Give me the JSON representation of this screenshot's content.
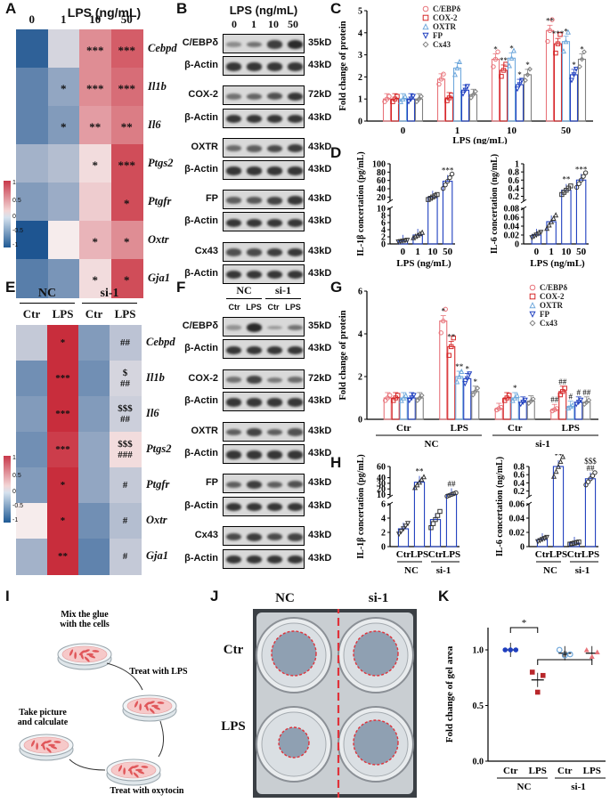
{
  "panels": {
    "A": {
      "label": "A",
      "title": "LPS (ng/mL)",
      "columns": [
        "0",
        "1",
        "10",
        "50"
      ],
      "genes": [
        "Cebpd",
        "Il1b",
        "Il6",
        "Ptgs2",
        "Ptgfr",
        "Oxtr",
        "Gja1"
      ],
      "values": [
        [
          -1.2,
          -0.2,
          0.6,
          0.9
        ],
        [
          -0.9,
          -0.6,
          0.6,
          0.8
        ],
        [
          -0.9,
          -0.7,
          0.5,
          0.7
        ],
        [
          -0.5,
          -0.4,
          0.1,
          1.0
        ],
        [
          -0.7,
          -0.55,
          0.2,
          1.0
        ],
        [
          -1.3,
          0.0,
          0.35,
          0.6
        ],
        [
          -0.95,
          -0.75,
          0.1,
          1.0
        ]
      ],
      "stars": [
        [
          "",
          "",
          "***",
          "***"
        ],
        [
          "",
          "*",
          "***",
          "***"
        ],
        [
          "",
          "*",
          "**",
          "**"
        ],
        [
          "",
          "",
          "*",
          "***"
        ],
        [
          "",
          "",
          "",
          "*"
        ],
        [
          "",
          "",
          "*",
          "*"
        ],
        [
          "",
          "",
          "*",
          "*"
        ]
      ],
      "colorbar": [
        "1",
        "0.5",
        "0",
        "-0.5",
        "-1"
      ]
    },
    "B": {
      "label": "B",
      "title": "LPS (ng/mL)",
      "lanes": [
        "0",
        "1",
        "10",
        "50"
      ],
      "blots": [
        {
          "name": "C/EBPδ",
          "kd": "35kD",
          "bands": [
            0.25,
            0.45,
            0.85,
            1.0
          ]
        },
        {
          "name": "β-Actin",
          "kd": "43kD",
          "bands": [
            0.9,
            0.9,
            0.9,
            0.9
          ]
        },
        {
          "name": "COX-2",
          "kd": "72kD",
          "bands": [
            0.45,
            0.55,
            0.7,
            0.9
          ]
        },
        {
          "name": "β-Actin",
          "kd": "43kD",
          "bands": [
            0.9,
            0.9,
            0.9,
            0.9
          ]
        },
        {
          "name": "OXTR",
          "kd": "43kD",
          "bands": [
            0.5,
            0.6,
            0.75,
            0.85
          ]
        },
        {
          "name": "β-Actin",
          "kd": "43kD",
          "bands": [
            0.9,
            0.9,
            0.9,
            0.9
          ]
        },
        {
          "name": "FP",
          "kd": "43kD",
          "bands": [
            0.6,
            0.65,
            0.8,
            0.9
          ]
        },
        {
          "name": "β-Actin",
          "kd": "43kD",
          "bands": [
            0.9,
            0.9,
            0.9,
            0.9
          ]
        },
        {
          "name": "Cx43",
          "kd": "43kD",
          "bands": [
            0.7,
            0.75,
            0.85,
            0.9
          ]
        },
        {
          "name": "β-Actin",
          "kd": "43kD",
          "bands": [
            0.9,
            0.9,
            0.9,
            0.9
          ]
        }
      ]
    },
    "E": {
      "label": "E",
      "groups": [
        "NC",
        "si-1"
      ],
      "columns": [
        "Ctr",
        "LPS",
        "Ctr",
        "LPS"
      ],
      "genes": [
        "Cebpd",
        "Il1b",
        "Il6",
        "Ptgs2",
        "Ptgfr",
        "Oxtr",
        "Gja1"
      ],
      "values": [
        [
          -0.3,
          1.2,
          -0.7,
          -0.35
        ],
        [
          -0.8,
          1.2,
          -0.8,
          -0.2
        ],
        [
          -0.7,
          1.2,
          -0.7,
          -0.25
        ],
        [
          -0.8,
          1.1,
          -0.6,
          0.1
        ],
        [
          -0.7,
          1.2,
          -0.6,
          -0.3
        ],
        [
          0.0,
          1.2,
          -0.8,
          -0.4
        ],
        [
          -0.5,
          1.2,
          -0.9,
          -0.3
        ]
      ],
      "marks": [
        [
          "",
          "*",
          "",
          "##"
        ],
        [
          "",
          "***",
          "",
          "$\n##"
        ],
        [
          "",
          "***",
          "",
          "$$$\n##"
        ],
        [
          "",
          "***",
          "",
          "$$$\n###"
        ],
        [
          "",
          "*",
          "",
          "#"
        ],
        [
          "",
          "*",
          "",
          "#"
        ],
        [
          "",
          "**",
          "",
          "#"
        ]
      ],
      "colorbar": [
        "1",
        "0.5",
        "0",
        "-0.5",
        "-1"
      ]
    },
    "F": {
      "label": "F",
      "groups": [
        "NC",
        "si-1"
      ],
      "lanes": [
        "Ctr",
        "LPS",
        "Ctr",
        "LPS"
      ],
      "blots": [
        {
          "name": "C/EBPδ",
          "kd": "35kD",
          "bands": [
            0.2,
            1.0,
            0.15,
            0.45
          ]
        },
        {
          "name": "β-Actin",
          "kd": "43kD",
          "bands": [
            0.9,
            0.9,
            0.9,
            0.9
          ]
        },
        {
          "name": "COX-2",
          "kd": "72kD",
          "bands": [
            0.45,
            0.8,
            0.4,
            0.5
          ]
        },
        {
          "name": "β-Actin",
          "kd": "43kD",
          "bands": [
            0.9,
            0.9,
            0.9,
            0.9
          ]
        },
        {
          "name": "OXTR",
          "kd": "43kD",
          "bands": [
            0.6,
            0.8,
            0.6,
            0.7
          ]
        },
        {
          "name": "β-Actin",
          "kd": "43kD",
          "bands": [
            0.9,
            0.9,
            0.9,
            0.9
          ]
        },
        {
          "name": "FP",
          "kd": "43kD",
          "bands": [
            0.6,
            0.85,
            0.6,
            0.7
          ]
        },
        {
          "name": "β-Actin",
          "kd": "43kD",
          "bands": [
            0.9,
            0.9,
            0.9,
            0.9
          ]
        },
        {
          "name": "Cx43",
          "kd": "43kD",
          "bands": [
            0.75,
            0.85,
            0.75,
            0.8
          ]
        },
        {
          "name": "β-Actin",
          "kd": "43kD",
          "bands": [
            0.9,
            0.9,
            0.9,
            0.9
          ]
        }
      ]
    },
    "I": {
      "label": "I",
      "steps": [
        {
          "text": [
            "Mix the glue",
            "with the cells"
          ]
        },
        {
          "text": [
            "Treat with LPS"
          ]
        },
        {
          "text": [
            "Treat with oxytocin"
          ]
        },
        {
          "text": [
            "Take picture",
            "and calculate"
          ]
        }
      ]
    },
    "J": {
      "label": "J",
      "col_labels": [
        "NC",
        "si-1"
      ],
      "row_labels": [
        "Ctr",
        "LPS"
      ]
    }
  },
  "chart_data": [
    {
      "panel": "C",
      "type": "bar",
      "ylabel": "Fold change of protein",
      "xlabel": "LPS (ng/mL)",
      "categories": [
        "0",
        "1",
        "10",
        "50"
      ],
      "ylim": [
        0,
        5
      ],
      "yticks": [
        0,
        1,
        2,
        3,
        4,
        5
      ],
      "series": [
        {
          "name": "C/EBPδ",
          "color": "#e8737a",
          "values": [
            1.0,
            1.9,
            2.8,
            4.1
          ],
          "marks": [
            "",
            "",
            "*",
            "**"
          ]
        },
        {
          "name": "COX-2",
          "color": "#d62728",
          "values": [
            1.0,
            1.05,
            2.3,
            3.5
          ],
          "marks": [
            "",
            "",
            "**",
            "***"
          ]
        },
        {
          "name": "OXTR",
          "color": "#6fa8dc",
          "values": [
            1.0,
            2.4,
            2.85,
            3.6
          ],
          "marks": [
            "",
            "",
            "*",
            "*"
          ]
        },
        {
          "name": "FP",
          "color": "#1f3fbf",
          "values": [
            1.0,
            1.4,
            1.65,
            2.1
          ],
          "marks": [
            "",
            "",
            "*",
            "*"
          ]
        },
        {
          "name": "Cx43",
          "color": "#808080",
          "values": [
            1.0,
            1.2,
            2.1,
            2.8
          ],
          "marks": [
            "",
            "",
            "*",
            "*"
          ]
        }
      ]
    },
    {
      "panel": "D1",
      "type": "bar",
      "ylabel": "IL-1β concertation (pg/mL)",
      "xlabel": "LPS (ng/mL)",
      "categories": [
        "0",
        "1",
        "10",
        "50"
      ],
      "yticks_low": [
        0,
        2,
        4,
        6,
        8,
        10
      ],
      "yticks_high": [
        20,
        40,
        60,
        80,
        100
      ],
      "values": [
        0.8,
        2.5,
        20,
        58
      ],
      "marks": [
        "",
        "",
        "",
        "***"
      ]
    },
    {
      "panel": "D2",
      "type": "bar",
      "ylabel": "IL-6 concertation (ng/mL)",
      "xlabel": "LPS (ng/mL)",
      "categories": [
        "0",
        "1",
        "10",
        "50"
      ],
      "yticks_low": [
        0,
        0.02,
        0.04,
        0.06,
        0.08
      ],
      "yticks_high": [
        0.2,
        0.4,
        0.6,
        0.8,
        1.0
      ],
      "values": [
        0.02,
        0.05,
        0.35,
        0.6
      ],
      "marks": [
        "",
        "",
        "**",
        "***"
      ]
    },
    {
      "panel": "G",
      "type": "bar",
      "ylabel": "Fold change of protein",
      "categories": [
        "Ctr",
        "LPS",
        "Ctr",
        "LPS"
      ],
      "groups": [
        "NC",
        "si-1"
      ],
      "ylim": [
        0,
        6
      ],
      "yticks": [
        0,
        2,
        4,
        6
      ],
      "series": [
        {
          "name": "C/EBPδ",
          "color": "#e8737a",
          "values": [
            1.0,
            4.6,
            0.5,
            0.45
          ],
          "marks": [
            "",
            "*",
            "",
            "##"
          ]
        },
        {
          "name": "COX-2",
          "color": "#d62728",
          "values": [
            1.0,
            3.4,
            1.0,
            1.3
          ],
          "marks": [
            "",
            "**",
            "",
            "##"
          ]
        },
        {
          "name": "OXTR",
          "color": "#6fa8dc",
          "values": [
            1.0,
            2.0,
            1.0,
            0.6
          ],
          "marks": [
            "",
            "**",
            "*",
            "#"
          ]
        },
        {
          "name": "FP",
          "color": "#1f3fbf",
          "values": [
            1.0,
            1.9,
            0.8,
            0.8
          ],
          "marks": [
            "",
            "*",
            "",
            "#"
          ]
        },
        {
          "name": "Cx43",
          "color": "#808080",
          "values": [
            1.0,
            1.3,
            0.85,
            0.8
          ],
          "marks": [
            "",
            "*",
            "",
            "##"
          ]
        }
      ]
    },
    {
      "panel": "H1",
      "type": "bar",
      "ylabel": "IL-1β concertation (pg/mL)",
      "categories": [
        "Ctr",
        "LPS",
        "Ctr",
        "LPS"
      ],
      "groups": [
        "NC",
        "si-1"
      ],
      "yticks_low": [
        0,
        2,
        4,
        6
      ],
      "yticks_high": [
        10,
        20,
        30,
        40,
        60
      ],
      "values": [
        2.5,
        32,
        3.8,
        10
      ],
      "marks": [
        "",
        "**",
        "",
        "##"
      ]
    },
    {
      "panel": "H2",
      "type": "bar",
      "ylabel": "IL-6 concertation (ng/mL)",
      "categories": [
        "Ctr",
        "LPS",
        "Ctr",
        "LPS"
      ],
      "groups": [
        "NC",
        "si-1"
      ],
      "yticks_low": [
        0,
        0.02,
        0.04,
        0.06
      ],
      "yticks_high": [
        0.2,
        0.4,
        0.6,
        0.8
      ],
      "values": [
        0.01,
        0.8,
        0.005,
        0.5
      ],
      "marks": [
        "",
        "**",
        "",
        "$$$\n##"
      ]
    },
    {
      "panel": "K",
      "type": "scatter",
      "ylabel": "Fold change of gel area",
      "categories": [
        "Ctr",
        "LPS",
        "Ctr",
        "LPS"
      ],
      "groups": [
        "NC",
        "si-1"
      ],
      "ylim": [
        0,
        1.2
      ],
      "yticks": [
        0,
        0.5,
        1.0
      ],
      "values": [
        1.0,
        0.73,
        0.97,
        0.97
      ],
      "points": [
        [
          1.0,
          1.0,
          1.0
        ],
        [
          0.8,
          0.62,
          0.77
        ],
        [
          1.0,
          0.95,
          0.96
        ],
        [
          1.0,
          0.94,
          0.98
        ]
      ],
      "colors": [
        "#1f3fbf",
        "#b8272b",
        "#6fa8dc",
        "#e8737a"
      ],
      "annotations": [
        "*",
        "#"
      ]
    }
  ]
}
